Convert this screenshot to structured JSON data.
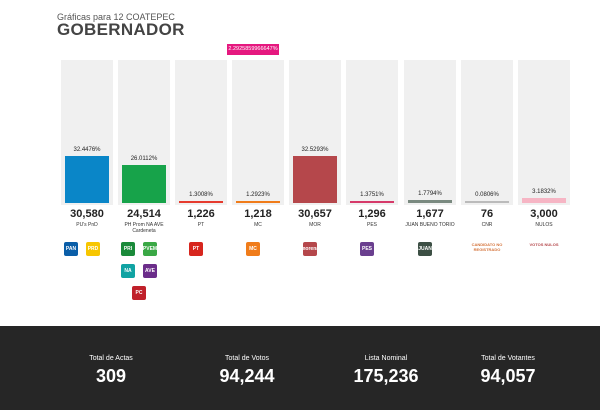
{
  "header": {
    "subtitle": "Gráficas para 12 COATEPEC",
    "title": "GOBERNADOR"
  },
  "callout_text": "2.2925859966647%",
  "chart_data": {
    "type": "bar",
    "title": "GOBERNADOR",
    "ylim": [
      0,
      100
    ],
    "categories": [
      "PU's PnD",
      "PH Prom NA AVE Cardeneta",
      "PT",
      "MC",
      "MOR",
      "PES",
      "JUAN BUENO TORIO",
      "CNR",
      "NULOS"
    ],
    "percent_labels": [
      "32.4476%",
      "26.0112%",
      "1.3008%",
      "1.2923%",
      "32.5293%",
      "1.3751%",
      "1.7794%",
      "0.0806%",
      "3.1832%"
    ],
    "values": [
      32.4476,
      26.0112,
      1.3008,
      1.2923,
      32.5293,
      1.3751,
      1.7794,
      0.0806,
      3.1832
    ],
    "votes": [
      "30,580",
      "24,514",
      "1,226",
      "1,218",
      "30,657",
      "1,296",
      "1,677",
      "76",
      "3,000"
    ],
    "colors": [
      "#0a86c8",
      "#17a34a",
      "#e63b2e",
      "#f07c1a",
      "#b5474b",
      "#d63a6a",
      "#7a8a80",
      "#bbbbbb",
      "#f6b5c4"
    ]
  },
  "logos": [
    {
      "col": 0,
      "row": 0,
      "icon": "pan-logo-icon",
      "color": "#0a5ea8",
      "label": "PAN"
    },
    {
      "col": 0,
      "row": 1,
      "icon": "prd-logo-icon",
      "color": "#f7c600",
      "label": "PRD"
    },
    {
      "col": 1,
      "row": 0,
      "icon": "pri-logo-icon",
      "color": "#1a8a3a",
      "label": "PRI"
    },
    {
      "col": 1,
      "row": 1,
      "icon": "verde-logo-icon",
      "color": "#3aa845",
      "label": "PVEM"
    },
    {
      "col": 1,
      "row": 2,
      "icon": "nueva-alianza-logo-icon",
      "color": "#10a3a3",
      "label": "NA"
    },
    {
      "col": 1,
      "row": 3,
      "icon": "ave-logo-icon",
      "color": "#6b2d8a",
      "label": "AVE"
    },
    {
      "col": 1,
      "row": 4,
      "icon": "cardenista-logo-icon",
      "color": "#c0202a",
      "label": "PC"
    },
    {
      "col": 2,
      "row": 0,
      "icon": "pt-logo-icon",
      "color": "#d7261e",
      "label": "PT"
    },
    {
      "col": 3,
      "row": 0,
      "icon": "mc-logo-icon",
      "color": "#f07c1a",
      "label": "MC"
    },
    {
      "col": 4,
      "row": 0,
      "icon": "morena-logo-icon",
      "color": "#b5474b",
      "label": "morena"
    },
    {
      "col": 5,
      "row": 0,
      "icon": "pes-logo-icon",
      "color": "#6a3f8f",
      "label": "PES"
    },
    {
      "col": 6,
      "row": 0,
      "icon": "juan-bueno-logo-icon",
      "color": "#3c4f44",
      "label": "JUAN"
    }
  ],
  "logo_texts": [
    {
      "col": 7,
      "icon": "no-registrado-logo-icon",
      "text": "CANDIDATO NO REGISTRADO",
      "color": "#d4733a"
    },
    {
      "col": 8,
      "icon": "nulos-logo-icon",
      "text": "VOTOS NULOS",
      "color": "#b5474b"
    }
  ],
  "footer": {
    "stats": [
      {
        "label": "Total de Actas",
        "value": "309"
      },
      {
        "label": "Total de Votos",
        "value": "94,244"
      },
      {
        "label": "Lista Nominal",
        "value": "175,236"
      },
      {
        "label": "Total de Votantes",
        "value": "94,057"
      }
    ]
  }
}
